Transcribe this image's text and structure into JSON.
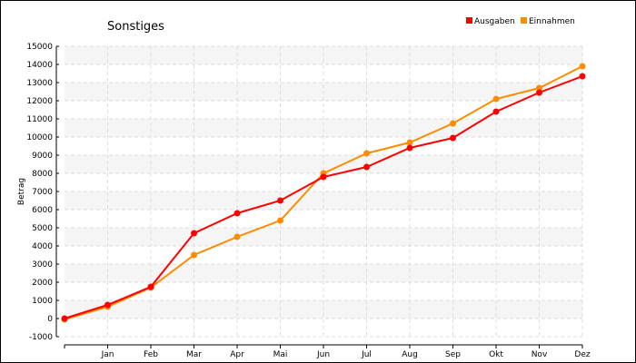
{
  "chart_data": {
    "type": "line",
    "title": "Sonstiges",
    "xlabel": "",
    "ylabel": "Betrag",
    "categories": [
      "",
      "Jan",
      "Feb",
      "Mar",
      "Apr",
      "Mai",
      "Jun",
      "Jul",
      "Aug",
      "Sep",
      "Okt",
      "Nov",
      "Dez"
    ],
    "series": [
      {
        "name": "Ausgaben",
        "color": "#ff0000",
        "values": [
          0,
          750,
          1750,
          4700,
          5800,
          6500,
          7800,
          8350,
          9400,
          9950,
          11400,
          12450,
          13350
        ]
      },
      {
        "name": "Einnahmen",
        "color": "#ff8c00",
        "values": [
          -50,
          650,
          1700,
          3500,
          4500,
          5400,
          8000,
          9100,
          9700,
          10750,
          12100,
          12700,
          13900
        ]
      }
    ],
    "ylim": [
      -1000,
      15000
    ],
    "yticks": [
      -1000,
      0,
      1000,
      2000,
      3000,
      4000,
      5000,
      6000,
      7000,
      8000,
      9000,
      10000,
      11000,
      12000,
      13000,
      14000,
      15000
    ],
    "grid": true,
    "legend": "top-right"
  }
}
